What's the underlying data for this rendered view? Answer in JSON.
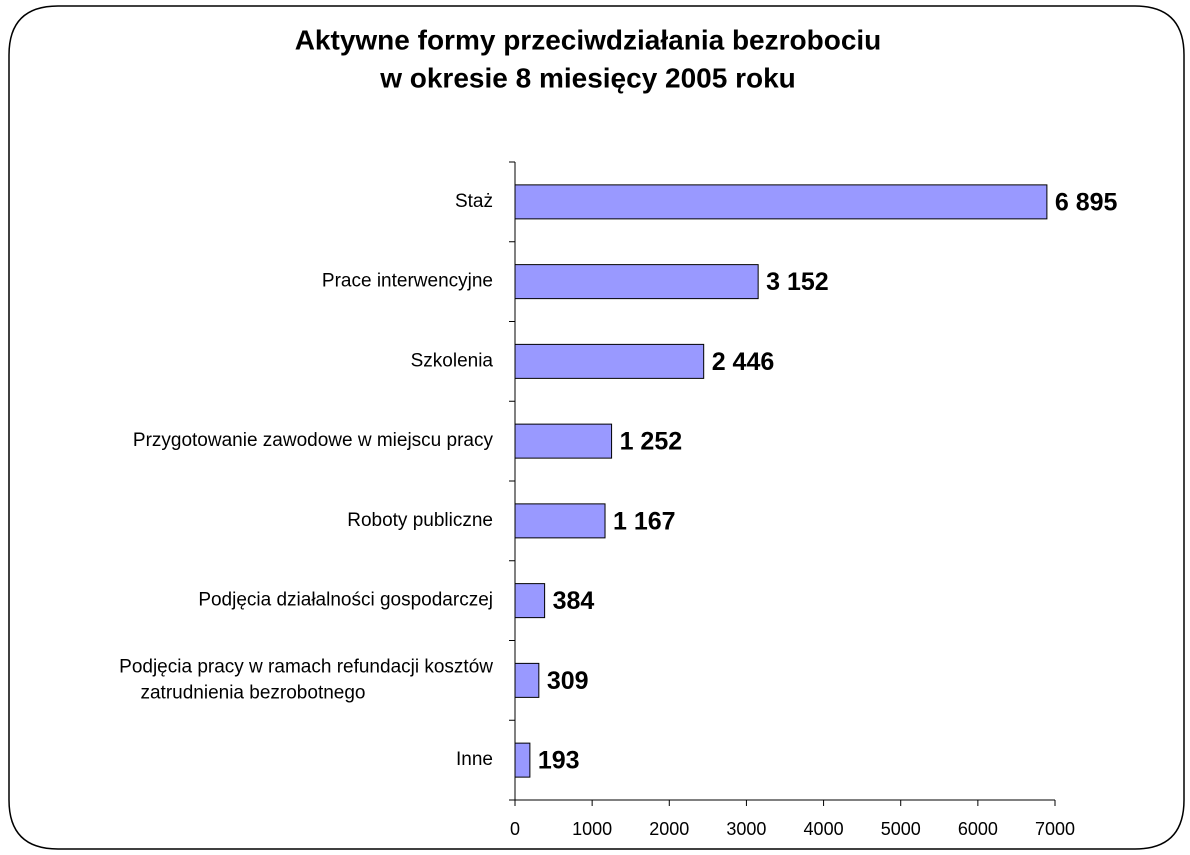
{
  "chart_data": {
    "type": "bar",
    "orientation": "horizontal",
    "title": [
      "Aktywne formy przeciwdziałania bezrobociu",
      "w okresie 8 miesięcy 2005 roku"
    ],
    "categories": [
      "Staż",
      "Prace interwencyjne",
      "Szkolenia",
      "Przygotowanie zawodowe w miejscu pracy",
      "Roboty publiczne",
      "Podjęcia działalności gospodarczej",
      "Podjęcia pracy w ramach refundacji kosztów\nzatrudnienia bezrobotnego",
      "Inne"
    ],
    "values": [
      6895,
      3152,
      2446,
      1252,
      1167,
      384,
      309,
      193
    ],
    "value_labels": [
      "6 895",
      "3 152",
      "2 446",
      "1 252",
      "1 167",
      "384",
      "309",
      "193"
    ],
    "color": "#9999ff",
    "xlim": [
      0,
      7000
    ],
    "xticks": [
      0,
      1000,
      2000,
      3000,
      4000,
      5000,
      6000,
      7000
    ]
  }
}
